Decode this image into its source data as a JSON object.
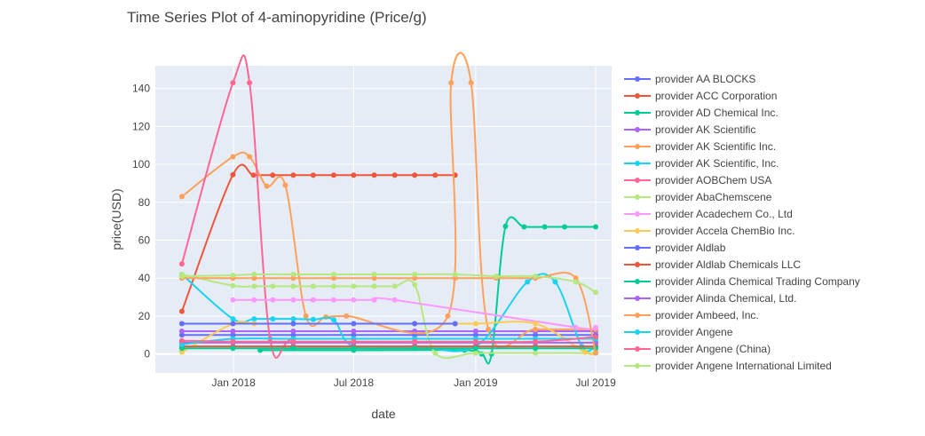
{
  "chart_data": {
    "type": "line",
    "title": "Time Series Plot of 4-aminopyridine (Price/g)",
    "xlabel": "date",
    "ylabel": "price(USD)",
    "x_tick_labels": [
      "Jan 2018",
      "Jul 2018",
      "Jan 2019",
      "Jul 2019"
    ],
    "x_ticks": [
      "2018-01-01",
      "2018-07-01",
      "2019-01-01",
      "2019-07-01"
    ],
    "xlim": [
      "2017-09-05",
      "2019-07-25"
    ],
    "y_ticks": [
      0,
      20,
      40,
      60,
      80,
      100,
      120,
      140
    ],
    "ylim": [
      -10,
      152
    ],
    "grid": true,
    "legend_position": "right",
    "series": [
      {
        "name": "provider AA BLOCKS",
        "color": "#636efa",
        "points": [
          [
            "2017-10-15",
            10
          ],
          [
            "2017-12-31",
            10
          ],
          [
            "2018-04-01",
            10
          ],
          [
            "2018-07-01",
            10
          ],
          [
            "2018-10-01",
            10
          ],
          [
            "2019-01-01",
            10
          ],
          [
            "2019-04-01",
            10
          ],
          [
            "2019-07-01",
            10
          ]
        ]
      },
      {
        "name": "provider ACC Corporation",
        "color": "#EF553B",
        "points": [
          [
            "2017-10-15",
            22.5
          ],
          [
            "2017-12-31",
            94.5
          ],
          [
            "2018-01-31",
            94.3
          ],
          [
            "2018-03-01",
            94.3
          ],
          [
            "2018-04-01",
            94.3
          ],
          [
            "2018-05-01",
            94.3
          ],
          [
            "2018-06-01",
            94.3
          ],
          [
            "2018-07-01",
            94.3
          ],
          [
            "2018-08-01",
            94.3
          ],
          [
            "2018-09-01",
            94.3
          ],
          [
            "2018-10-01",
            94.3
          ],
          [
            "2018-11-01",
            94.3
          ],
          [
            "2018-12-01",
            94.3
          ]
        ]
      },
      {
        "name": "provider AD Chemical Inc.",
        "color": "#00cc96",
        "points": [
          [
            "2018-02-10",
            2
          ],
          [
            "2018-07-01",
            2
          ],
          [
            "2018-12-15",
            2
          ],
          [
            "2019-01-10",
            0
          ],
          [
            "2019-01-25",
            0
          ],
          [
            "2019-02-15",
            67.3
          ],
          [
            "2019-03-15",
            67
          ],
          [
            "2019-04-15",
            67
          ],
          [
            "2019-05-15",
            67
          ],
          [
            "2019-07-01",
            67
          ]
        ]
      },
      {
        "name": "provider AK Scientific",
        "color": "#ab63fa",
        "points": [
          [
            "2017-10-15",
            12
          ],
          [
            "2017-12-31",
            12
          ],
          [
            "2018-04-01",
            12
          ],
          [
            "2018-07-01",
            12
          ],
          [
            "2018-10-01",
            12
          ],
          [
            "2019-01-01",
            12
          ],
          [
            "2019-04-01",
            12
          ],
          [
            "2019-07-01",
            12
          ]
        ]
      },
      {
        "name": "provider AK Scientific Inc.",
        "color": "#FFA15A",
        "points": [
          [
            "2017-10-15",
            83
          ],
          [
            "2017-12-31",
            104
          ],
          [
            "2018-01-25",
            104
          ],
          [
            "2018-02-20",
            88.5
          ],
          [
            "2018-03-20",
            89
          ],
          [
            "2018-04-20",
            20
          ],
          [
            "2018-05-20",
            19.5
          ],
          [
            "2018-06-20",
            20
          ],
          [
            "2018-11-20",
            20
          ],
          [
            "2018-11-25",
            143
          ],
          [
            "2018-12-25",
            143
          ],
          [
            "2019-01-20",
            13
          ],
          [
            "2019-04-01",
            13
          ],
          [
            "2019-07-01",
            13
          ]
        ]
      },
      {
        "name": "provider AK Scientific, Inc.",
        "color": "#19d3f3",
        "points": [
          [
            "2017-10-15",
            42
          ],
          [
            "2017-12-31",
            18.5
          ],
          [
            "2018-02-01",
            18.5
          ],
          [
            "2018-03-01",
            18.5
          ],
          [
            "2018-04-01",
            18.5
          ],
          [
            "2018-05-01",
            18.2
          ],
          [
            "2018-06-01",
            18
          ],
          [
            "2018-07-01",
            4
          ],
          [
            "2018-10-01",
            4
          ],
          [
            "2019-01-01",
            4
          ],
          [
            "2019-03-20",
            38
          ],
          [
            "2019-05-01",
            38
          ],
          [
            "2019-06-10",
            4
          ],
          [
            "2019-07-01",
            4
          ]
        ]
      },
      {
        "name": "provider AOBChem USA",
        "color": "#FF6692",
        "points": [
          [
            "2017-10-15",
            47.5
          ],
          [
            "2017-12-31",
            143
          ],
          [
            "2018-01-25",
            143
          ],
          [
            "2018-02-25",
            8
          ],
          [
            "2018-04-01",
            8
          ],
          [
            "2018-07-01",
            8
          ],
          [
            "2018-10-01",
            8
          ],
          [
            "2019-01-01",
            8
          ],
          [
            "2019-04-01",
            8
          ],
          [
            "2019-07-01",
            8
          ]
        ]
      },
      {
        "name": "provider AbaChemscene",
        "color": "#B6E880",
        "points": [
          [
            "2017-10-15",
            42
          ],
          [
            "2017-12-31",
            36
          ],
          [
            "2018-02-01",
            35.7
          ],
          [
            "2018-03-01",
            35.7
          ],
          [
            "2018-04-01",
            35.7
          ],
          [
            "2018-05-01",
            35.7
          ],
          [
            "2018-06-01",
            35.7
          ],
          [
            "2018-07-01",
            35.7
          ],
          [
            "2018-08-01",
            35.7
          ],
          [
            "2018-09-01",
            35.7
          ],
          [
            "2018-10-01",
            36.5
          ],
          [
            "2018-11-01",
            0.5
          ],
          [
            "2019-01-01",
            0.5
          ],
          [
            "2019-04-01",
            0.5
          ],
          [
            "2019-07-01",
            0.5
          ]
        ]
      },
      {
        "name": "provider Acadechem Co., Ltd",
        "color": "#FF97FF",
        "points": [
          [
            "2017-12-31",
            28.5
          ],
          [
            "2018-02-01",
            28.5
          ],
          [
            "2018-03-01",
            28.5
          ],
          [
            "2018-04-01",
            28.5
          ],
          [
            "2018-05-01",
            28.5
          ],
          [
            "2018-06-01",
            28.5
          ],
          [
            "2018-07-01",
            28.5
          ],
          [
            "2018-08-01",
            28.5
          ],
          [
            "2018-09-01",
            28.5
          ],
          [
            "2019-06-01",
            14
          ],
          [
            "2019-07-01",
            14
          ]
        ]
      },
      {
        "name": "provider Accela ChemBio Inc.",
        "color": "#FECB52",
        "points": [
          [
            "2017-10-15",
            1
          ],
          [
            "2017-12-31",
            16
          ],
          [
            "2018-02-01",
            16
          ],
          [
            "2018-04-01",
            16
          ],
          [
            "2018-07-01",
            16
          ],
          [
            "2018-10-01",
            16
          ],
          [
            "2019-01-01",
            16
          ],
          [
            "2019-04-01",
            16
          ],
          [
            "2019-06-15",
            1
          ],
          [
            "2019-07-01",
            1
          ]
        ]
      },
      {
        "name": "provider Aldlab",
        "color": "#636efa",
        "points": [
          [
            "2017-10-15",
            16
          ],
          [
            "2017-12-31",
            16
          ],
          [
            "2018-04-01",
            16
          ],
          [
            "2018-07-01",
            16
          ],
          [
            "2018-10-01",
            16
          ],
          [
            "2018-12-01",
            16
          ]
        ]
      },
      {
        "name": "provider Aldlab Chemicals LLC",
        "color": "#EF553B",
        "points": [
          [
            "2017-10-15",
            4
          ],
          [
            "2017-12-31",
            4
          ],
          [
            "2018-04-01",
            4
          ],
          [
            "2018-07-01",
            4
          ],
          [
            "2018-10-01",
            4
          ],
          [
            "2019-01-01",
            4
          ],
          [
            "2019-04-01",
            4
          ],
          [
            "2019-07-01",
            4
          ]
        ]
      },
      {
        "name": "provider Alinda Chemical Trading Company",
        "color": "#00cc96",
        "points": [
          [
            "2017-10-15",
            3
          ],
          [
            "2017-12-31",
            3
          ],
          [
            "2018-04-01",
            3
          ],
          [
            "2018-07-01",
            3
          ],
          [
            "2018-10-01",
            3
          ],
          [
            "2019-01-01",
            3
          ],
          [
            "2019-04-01",
            3
          ],
          [
            "2019-07-01",
            3
          ]
        ]
      },
      {
        "name": "provider Alinda Chemical, Ltd.",
        "color": "#ab63fa",
        "points": [
          [
            "2017-10-15",
            6
          ],
          [
            "2017-12-31",
            6
          ],
          [
            "2018-04-01",
            6
          ],
          [
            "2018-07-01",
            6
          ],
          [
            "2018-10-01",
            6
          ],
          [
            "2019-01-01",
            6
          ],
          [
            "2019-04-01",
            6
          ],
          [
            "2019-07-01",
            6
          ]
        ]
      },
      {
        "name": "provider Ambeed, Inc.",
        "color": "#FFA15A",
        "points": [
          [
            "2017-10-15",
            40
          ],
          [
            "2017-12-31",
            40
          ],
          [
            "2018-02-01",
            40
          ],
          [
            "2018-04-01",
            40
          ],
          [
            "2018-06-01",
            40
          ],
          [
            "2018-08-01",
            40
          ],
          [
            "2018-10-01",
            40
          ],
          [
            "2018-12-01",
            40
          ],
          [
            "2019-02-01",
            40
          ],
          [
            "2019-04-01",
            40
          ],
          [
            "2019-06-01",
            40
          ],
          [
            "2019-07-01",
            0.5
          ]
        ]
      },
      {
        "name": "provider Angene",
        "color": "#19d3f3",
        "points": [
          [
            "2017-10-15",
            5
          ],
          [
            "2017-12-31",
            8
          ],
          [
            "2018-04-01",
            8
          ],
          [
            "2018-07-01",
            8
          ],
          [
            "2018-10-01",
            8
          ],
          [
            "2019-01-01",
            8
          ],
          [
            "2019-04-01",
            8
          ],
          [
            "2019-07-01",
            8
          ]
        ]
      },
      {
        "name": "provider Angene (China)",
        "color": "#FF6692",
        "points": [
          [
            "2017-10-15",
            7
          ],
          [
            "2017-12-31",
            6.5
          ],
          [
            "2018-04-01",
            6.5
          ],
          [
            "2018-07-01",
            6.5
          ],
          [
            "2018-10-01",
            6.5
          ],
          [
            "2019-01-01",
            6.5
          ],
          [
            "2019-04-01",
            6.5
          ],
          [
            "2019-07-01",
            9
          ]
        ]
      },
      {
        "name": "provider Angene International Limited",
        "color": "#B6E880",
        "points": [
          [
            "2017-10-15",
            41
          ],
          [
            "2017-12-31",
            41.5
          ],
          [
            "2018-02-01",
            42
          ],
          [
            "2018-04-01",
            42
          ],
          [
            "2018-06-01",
            42
          ],
          [
            "2018-08-01",
            42
          ],
          [
            "2018-10-01",
            42
          ],
          [
            "2018-12-01",
            42
          ],
          [
            "2019-02-01",
            41
          ],
          [
            "2019-04-01",
            41
          ],
          [
            "2019-06-01",
            38
          ],
          [
            "2019-07-01",
            32.5
          ]
        ]
      }
    ]
  }
}
